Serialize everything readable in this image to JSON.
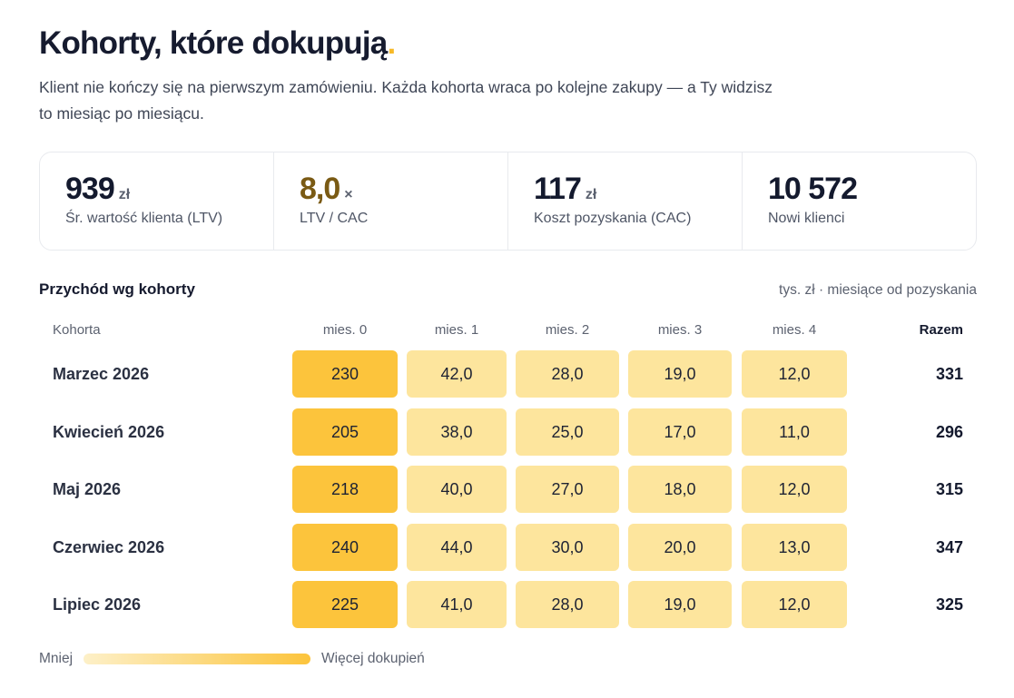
{
  "header": {
    "title": "Kohorty, które dokupują",
    "title_dot": ".",
    "subtitle": "Klient nie kończy się na pierwszym zamówieniu. Każda kohorta wraca po kolejne zakupy — a Ty widzisz to miesiąc po miesiącu."
  },
  "stats": [
    {
      "value": "939",
      "unit": "zł",
      "label": "Śr. wartość klienta (LTV)"
    },
    {
      "value": "8,0",
      "unit": "×",
      "label": "LTV / CAC"
    },
    {
      "value": "117",
      "unit": "zł",
      "label": "Koszt pozyskania (CAC)"
    },
    {
      "value": "10 572",
      "unit": "",
      "label": "Nowi klienci"
    }
  ],
  "table": {
    "title": "Przychód wg kohorty",
    "note": "tys. zł · miesiące od pozyskania",
    "headers": {
      "cohort": "Kohorta",
      "months": [
        "mies. 0",
        "mies. 1",
        "mies. 2",
        "mies. 3",
        "mies. 4"
      ],
      "total": "Razem"
    },
    "rows": [
      {
        "cohort": "Marzec 2026",
        "values": [
          "230",
          "42,0",
          "28,0",
          "19,0",
          "12,0"
        ],
        "total": "331"
      },
      {
        "cohort": "Kwiecień 2026",
        "values": [
          "205",
          "38,0",
          "25,0",
          "17,0",
          "11,0"
        ],
        "total": "296"
      },
      {
        "cohort": "Maj 2026",
        "values": [
          "218",
          "40,0",
          "27,0",
          "18,0",
          "12,0"
        ],
        "total": "315"
      },
      {
        "cohort": "Czerwiec 2026",
        "values": [
          "240",
          "44,0",
          "30,0",
          "20,0",
          "13,0"
        ],
        "total": "347"
      },
      {
        "cohort": "Lipiec 2026",
        "values": [
          "225",
          "41,0",
          "28,0",
          "19,0",
          "12,0"
        ],
        "total": "325"
      }
    ]
  },
  "legend": {
    "less": "Mniej",
    "more": "Więcej dokupień"
  },
  "colors": {
    "accent": "#f7b928",
    "heat_high": "#fcc43c",
    "heat_low": "#fde59d"
  }
}
